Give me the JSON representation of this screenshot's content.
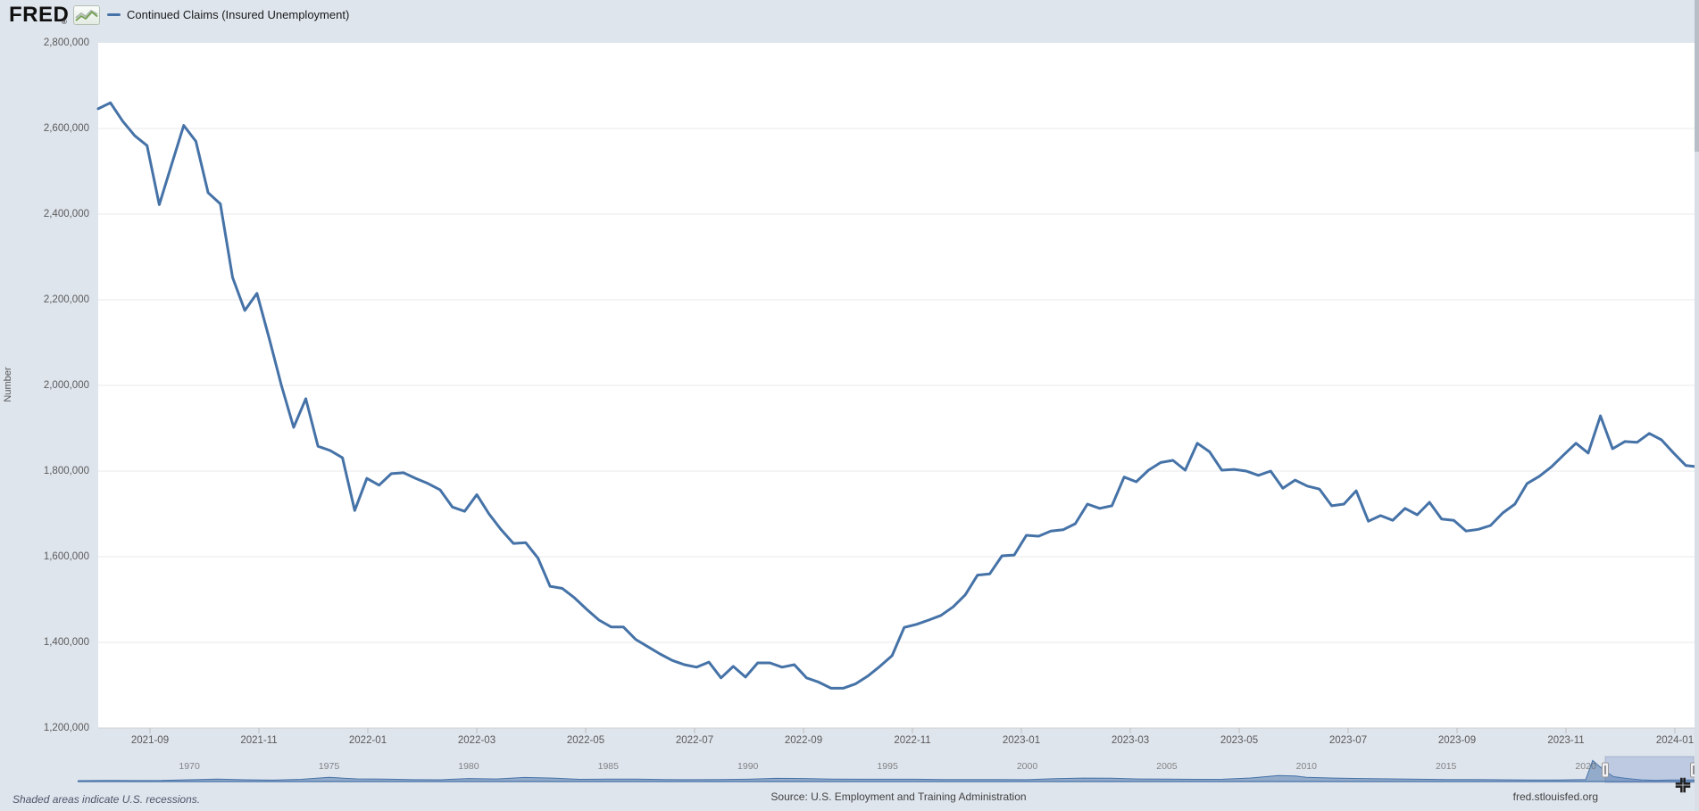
{
  "header": {
    "logo": {
      "text": "FRED",
      "reg": "®",
      "icon": "fred-sparkline-logo-icon"
    },
    "legend": {
      "label": "Continued Claims (Insured Unemployment)",
      "color": "#4572a7"
    }
  },
  "chart_data": {
    "type": "line",
    "title": "Continued Claims (Insured Unemployment)",
    "ylabel": "Number",
    "grid": true,
    "legend_position": "top-left",
    "ylim": [
      1200000,
      2800000
    ],
    "y_ticks": [
      {
        "label": "2,800,000",
        "value": 2800000
      },
      {
        "label": "2,600,000",
        "value": 2600000
      },
      {
        "label": "2,400,000",
        "value": 2400000
      },
      {
        "label": "2,200,000",
        "value": 2200000
      },
      {
        "label": "2,000,000",
        "value": 2000000
      },
      {
        "label": "1,800,000",
        "value": 1800000
      },
      {
        "label": "1,600,000",
        "value": 1600000
      },
      {
        "label": "1,400,000",
        "value": 1400000
      },
      {
        "label": "1,200,000",
        "value": 1200000
      }
    ],
    "x_ticks": [
      "2021-09",
      "2021-11",
      "2022-01",
      "2022-03",
      "2022-05",
      "2022-07",
      "2022-09",
      "2022-11",
      "2023-01",
      "2023-03",
      "2023-05",
      "2023-07",
      "2023-09",
      "2023-11",
      "2024-01"
    ],
    "series": [
      {
        "name": "Continued Claims (Insured Unemployment)",
        "color": "#4572a7",
        "frequency": "weekly",
        "start": "2021-08",
        "end": "2024-01",
        "values": [
          2646000,
          2660000,
          2617000,
          2583000,
          2560000,
          2422000,
          2515000,
          2607000,
          2570000,
          2450000,
          2424000,
          2252000,
          2175000,
          2215000,
          2110000,
          2000000,
          1902000,
          1969000,
          1858000,
          1848000,
          1831000,
          1708000,
          1783000,
          1767000,
          1794000,
          1796000,
          1783000,
          1771000,
          1756000,
          1716000,
          1706000,
          1745000,
          1700000,
          1663000,
          1631000,
          1633000,
          1597000,
          1531000,
          1526000,
          1504000,
          1477000,
          1452000,
          1436000,
          1436000,
          1407000,
          1390000,
          1373000,
          1358000,
          1348000,
          1342000,
          1354000,
          1317000,
          1344000,
          1319000,
          1352000,
          1352000,
          1342000,
          1348000,
          1317000,
          1307000,
          1293000,
          1293000,
          1303000,
          1321000,
          1344000,
          1369000,
          1435000,
          1442000,
          1452000,
          1463000,
          1483000,
          1511000,
          1557000,
          1560000,
          1602000,
          1604000,
          1650000,
          1648000,
          1660000,
          1663000,
          1677000,
          1723000,
          1713000,
          1719000,
          1786000,
          1775000,
          1802000,
          1820000,
          1825000,
          1802000,
          1865000,
          1845000,
          1802000,
          1804000,
          1800000,
          1790000,
          1800000,
          1760000,
          1779000,
          1765000,
          1758000,
          1719000,
          1723000,
          1754000,
          1683000,
          1696000,
          1685000,
          1713000,
          1698000,
          1727000,
          1688000,
          1685000,
          1660000,
          1664000,
          1673000,
          1702000,
          1723000,
          1771000,
          1788000,
          1810000,
          1838000,
          1865000,
          1842000,
          1929000,
          1852000,
          1869000,
          1867000,
          1888000,
          1873000,
          1842000,
          1813000,
          1810000
        ]
      }
    ]
  },
  "navigator": {
    "decade_labels": [
      "1970",
      "1975",
      "1980",
      "1985",
      "1990",
      "1995",
      "2000",
      "2005",
      "2010",
      "2015",
      "2020"
    ],
    "start_year": 1966,
    "end_year": 2024,
    "selected_range": {
      "start": "2021-08",
      "end": "2024-01"
    },
    "series_millions": [
      [
        1966,
        1.0
      ],
      [
        1967,
        1.2
      ],
      [
        1968,
        1.05
      ],
      [
        1969,
        1.1
      ],
      [
        1970,
        1.9
      ],
      [
        1971,
        2.6
      ],
      [
        1972,
        1.9
      ],
      [
        1973,
        1.5
      ],
      [
        1974,
        2.4
      ],
      [
        1975,
        4.6
      ],
      [
        1975.5,
        3.6
      ],
      [
        1976,
        2.9
      ],
      [
        1977,
        2.6
      ],
      [
        1978,
        2.0
      ],
      [
        1979,
        1.9
      ],
      [
        1980,
        3.2
      ],
      [
        1981,
        2.8
      ],
      [
        1982,
        4.4
      ],
      [
        1983,
        3.7
      ],
      [
        1984,
        2.4
      ],
      [
        1985,
        2.6
      ],
      [
        1986,
        2.6
      ],
      [
        1987,
        2.2
      ],
      [
        1988,
        2.0
      ],
      [
        1989,
        2.1
      ],
      [
        1990,
        2.5
      ],
      [
        1991,
        3.4
      ],
      [
        1992,
        3.2
      ],
      [
        1993,
        2.7
      ],
      [
        1994,
        2.5
      ],
      [
        1995,
        2.5
      ],
      [
        1996,
        2.5
      ],
      [
        1997,
        2.2
      ],
      [
        1998,
        2.1
      ],
      [
        1999,
        2.1
      ],
      [
        2000,
        2.0
      ],
      [
        2001,
        3.1
      ],
      [
        2002,
        3.7
      ],
      [
        2003,
        3.5
      ],
      [
        2004,
        2.8
      ],
      [
        2005,
        2.6
      ],
      [
        2006,
        2.4
      ],
      [
        2007,
        2.5
      ],
      [
        2008,
        3.8
      ],
      [
        2009,
        6.5
      ],
      [
        2009.6,
        5.9
      ],
      [
        2010,
        4.6
      ],
      [
        2011,
        3.7
      ],
      [
        2012,
        3.2
      ],
      [
        2013,
        2.9
      ],
      [
        2014,
        2.5
      ],
      [
        2015,
        2.2
      ],
      [
        2016,
        2.1
      ],
      [
        2017,
        1.9
      ],
      [
        2018,
        1.75
      ],
      [
        2019,
        1.7
      ],
      [
        2020,
        2.1
      ],
      [
        2020.25,
        22.5
      ],
      [
        2020.5,
        16
      ],
      [
        2020.8,
        9
      ],
      [
        2021,
        5.2
      ],
      [
        2021.4,
        3.6
      ],
      [
        2021.7,
        2.6
      ],
      [
        2022,
        1.8
      ],
      [
        2022.5,
        1.35
      ],
      [
        2023,
        1.7
      ],
      [
        2023.5,
        1.75
      ],
      [
        2024,
        1.85
      ]
    ]
  },
  "footer": {
    "note": "Shaded areas indicate U.S. recessions.",
    "source": "Source: U.S. Employment and Training Administration",
    "site": "fred.stlouisfed.org"
  }
}
